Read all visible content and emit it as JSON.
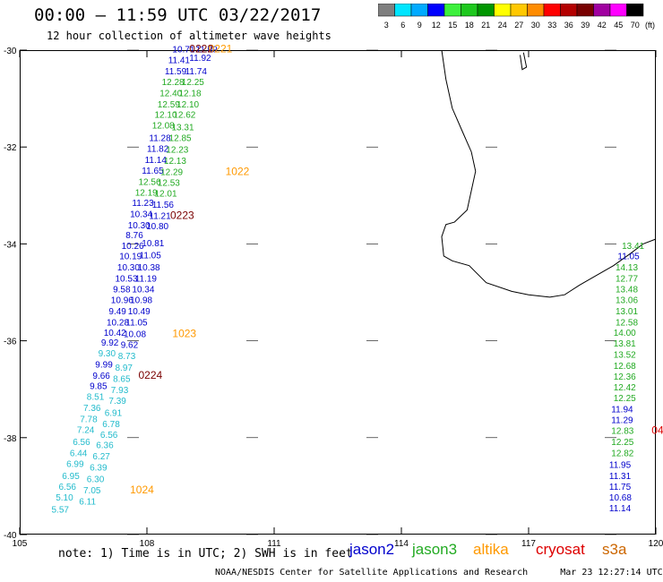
{
  "header": {
    "title": "00:00 – 11:59 UTC 03/22/2017",
    "subtitle": "12 hour collection of altimeter wave heights"
  },
  "color_scale": {
    "unit_label": "(ft)",
    "bins": [
      {
        "label": "3",
        "color": "#7f7f7f"
      },
      {
        "label": "6",
        "color": "#00e5ff"
      },
      {
        "label": "9",
        "color": "#00aaff"
      },
      {
        "label": "12",
        "color": "#0000ff"
      },
      {
        "label": "15",
        "color": "#3cf03c"
      },
      {
        "label": "18",
        "color": "#1ec81e"
      },
      {
        "label": "21",
        "color": "#009600"
      },
      {
        "label": "24",
        "color": "#ffff00"
      },
      {
        "label": "27",
        "color": "#ffc800"
      },
      {
        "label": "30",
        "color": "#ff8c00"
      },
      {
        "label": "33",
        "color": "#ff0000"
      },
      {
        "label": "36",
        "color": "#b40000"
      },
      {
        "label": "39",
        "color": "#780000"
      },
      {
        "label": "42",
        "color": "#a000a0"
      },
      {
        "label": "45",
        "color": "#ff00ff"
      },
      {
        "label": "70",
        "color": "#000000"
      }
    ]
  },
  "axes": {
    "lon_labels": [
      "105",
      "108",
      "111",
      "114",
      "117",
      "120"
    ],
    "lat_labels": [
      "-30",
      "-32",
      "-34",
      "-36",
      "-38",
      "-40"
    ],
    "lon_range": [
      105,
      120
    ],
    "lat_range": [
      -40,
      -30
    ]
  },
  "colors": {
    "jason2": "#0000cc",
    "jason3": "#22aa22",
    "altika": "#ff9900",
    "cryosat": "#dd0000",
    "s3a": "#cc6600",
    "time_label_dark": "#7a0000",
    "light_green": "#66dd66",
    "cyan": "#22bbcc",
    "coast": "#000000"
  },
  "track_west": [
    {
      "lon": 108.6,
      "lat": -30.05,
      "v": "10.71",
      "c": "jason2"
    },
    {
      "lon": 109.15,
      "lat": -30.05,
      "v": "11.09",
      "c": "jason2"
    },
    {
      "lon": 108.5,
      "lat": -30.27,
      "v": "11.41",
      "c": "jason2"
    },
    {
      "lon": 109.0,
      "lat": -30.22,
      "v": "11.92",
      "c": "jason2"
    },
    {
      "lon": 108.42,
      "lat": -30.5,
      "v": "11.59",
      "c": "jason2"
    },
    {
      "lon": 108.9,
      "lat": -30.5,
      "v": "11.74",
      "c": "jason2"
    },
    {
      "lon": 108.35,
      "lat": -30.72,
      "v": "12.28",
      "c": "jason3"
    },
    {
      "lon": 108.82,
      "lat": -30.72,
      "v": "12.25",
      "c": "jason3"
    },
    {
      "lon": 108.3,
      "lat": -30.95,
      "v": "12.40",
      "c": "jason3"
    },
    {
      "lon": 108.75,
      "lat": -30.95,
      "v": "12.18",
      "c": "jason3"
    },
    {
      "lon": 108.25,
      "lat": -31.18,
      "v": "12.59",
      "c": "jason3"
    },
    {
      "lon": 108.7,
      "lat": -31.18,
      "v": "12.10",
      "c": "jason3"
    },
    {
      "lon": 108.18,
      "lat": -31.4,
      "v": "12.10",
      "c": "jason3"
    },
    {
      "lon": 108.62,
      "lat": -31.4,
      "v": "12.62",
      "c": "jason3"
    },
    {
      "lon": 108.12,
      "lat": -31.62,
      "v": "12.08",
      "c": "jason3"
    },
    {
      "lon": 108.58,
      "lat": -31.65,
      "v": "13.31",
      "c": "jason3"
    },
    {
      "lon": 108.05,
      "lat": -31.88,
      "v": "11.28",
      "c": "jason2"
    },
    {
      "lon": 108.52,
      "lat": -31.88,
      "v": "12.85",
      "c": "jason3"
    },
    {
      "lon": 108.0,
      "lat": -32.1,
      "v": "11.82",
      "c": "jason2"
    },
    {
      "lon": 108.45,
      "lat": -32.12,
      "v": "12.23",
      "c": "jason3"
    },
    {
      "lon": 107.95,
      "lat": -32.33,
      "v": "11.14",
      "c": "jason2"
    },
    {
      "lon": 108.4,
      "lat": -32.35,
      "v": "12.13",
      "c": "jason3"
    },
    {
      "lon": 107.88,
      "lat": -32.55,
      "v": "11.65",
      "c": "jason2"
    },
    {
      "lon": 108.32,
      "lat": -32.58,
      "v": "12.29",
      "c": "jason3"
    },
    {
      "lon": 107.8,
      "lat": -32.78,
      "v": "12.56",
      "c": "jason3"
    },
    {
      "lon": 108.25,
      "lat": -32.8,
      "v": "12.53",
      "c": "jason3"
    },
    {
      "lon": 107.72,
      "lat": -33.0,
      "v": "12.19",
      "c": "jason3"
    },
    {
      "lon": 108.18,
      "lat": -33.02,
      "v": "12.01",
      "c": "jason3"
    },
    {
      "lon": 107.65,
      "lat": -33.22,
      "v": "11.23",
      "c": "jason2"
    },
    {
      "lon": 108.12,
      "lat": -33.25,
      "v": "11.56",
      "c": "jason2"
    },
    {
      "lon": 107.6,
      "lat": -33.45,
      "v": "10.34",
      "c": "jason2"
    },
    {
      "lon": 108.05,
      "lat": -33.48,
      "v": "11.21",
      "c": "jason2"
    },
    {
      "lon": 107.55,
      "lat": -33.68,
      "v": "10.30",
      "c": "jason2"
    },
    {
      "lon": 107.98,
      "lat": -33.7,
      "v": "10.80",
      "c": "jason2"
    },
    {
      "lon": 107.5,
      "lat": -33.88,
      "v": "8.76",
      "c": "jason2"
    },
    {
      "lon": 107.4,
      "lat": -34.1,
      "v": "10.26",
      "c": "jason2"
    },
    {
      "lon": 107.88,
      "lat": -34.05,
      "v": "10.81",
      "c": "jason2"
    },
    {
      "lon": 107.35,
      "lat": -34.32,
      "v": "10.19",
      "c": "jason2"
    },
    {
      "lon": 107.82,
      "lat": -34.3,
      "v": "11.05",
      "c": "jason2"
    },
    {
      "lon": 107.3,
      "lat": -34.55,
      "v": "10.30",
      "c": "jason2"
    },
    {
      "lon": 107.78,
      "lat": -34.55,
      "v": "10.38",
      "c": "jason2"
    },
    {
      "lon": 107.25,
      "lat": -34.78,
      "v": "10.53",
      "c": "jason2"
    },
    {
      "lon": 107.72,
      "lat": -34.78,
      "v": "11.19",
      "c": "jason2"
    },
    {
      "lon": 107.2,
      "lat": -35.0,
      "v": "9.58",
      "c": "jason2"
    },
    {
      "lon": 107.65,
      "lat": -35.0,
      "v": "10.34",
      "c": "jason2"
    },
    {
      "lon": 107.15,
      "lat": -35.22,
      "v": "10.96",
      "c": "jason2"
    },
    {
      "lon": 107.6,
      "lat": -35.22,
      "v": "10.98",
      "c": "jason2"
    },
    {
      "lon": 107.1,
      "lat": -35.45,
      "v": "9.49",
      "c": "jason2"
    },
    {
      "lon": 107.55,
      "lat": -35.45,
      "v": "10.49",
      "c": "jason2"
    },
    {
      "lon": 107.05,
      "lat": -35.68,
      "v": "10.28",
      "c": "jason2"
    },
    {
      "lon": 107.5,
      "lat": -35.68,
      "v": "11.05",
      "c": "jason2"
    },
    {
      "lon": 106.98,
      "lat": -35.9,
      "v": "10.42",
      "c": "jason2"
    },
    {
      "lon": 107.45,
      "lat": -35.92,
      "v": "10.08",
      "c": "jason2"
    },
    {
      "lon": 106.92,
      "lat": -36.1,
      "v": "9.92",
      "c": "jason2"
    },
    {
      "lon": 107.38,
      "lat": -36.15,
      "v": "9.62",
      "c": "jason2"
    },
    {
      "lon": 106.85,
      "lat": -36.32,
      "v": "9.30",
      "c": "cyan"
    },
    {
      "lon": 107.32,
      "lat": -36.38,
      "v": "8.73",
      "c": "cyan"
    },
    {
      "lon": 106.78,
      "lat": -36.55,
      "v": "9.99",
      "c": "jason2"
    },
    {
      "lon": 107.25,
      "lat": -36.62,
      "v": "8.97",
      "c": "cyan"
    },
    {
      "lon": 106.72,
      "lat": -36.78,
      "v": "9.66",
      "c": "jason2"
    },
    {
      "lon": 107.2,
      "lat": -36.85,
      "v": "8.65",
      "c": "cyan"
    },
    {
      "lon": 106.65,
      "lat": -37.0,
      "v": "9.85",
      "c": "jason2"
    },
    {
      "lon": 107.15,
      "lat": -37.08,
      "v": "7.93",
      "c": "cyan"
    },
    {
      "lon": 106.58,
      "lat": -37.22,
      "v": "8.51",
      "c": "cyan"
    },
    {
      "lon": 107.1,
      "lat": -37.3,
      "v": "7.39",
      "c": "cyan"
    },
    {
      "lon": 106.5,
      "lat": -37.45,
      "v": "7.36",
      "c": "cyan"
    },
    {
      "lon": 107.0,
      "lat": -37.55,
      "v": "6.91",
      "c": "cyan"
    },
    {
      "lon": 106.42,
      "lat": -37.68,
      "v": "7.78",
      "c": "cyan"
    },
    {
      "lon": 106.95,
      "lat": -37.78,
      "v": "6.78",
      "c": "cyan"
    },
    {
      "lon": 106.35,
      "lat": -37.9,
      "v": "7.24",
      "c": "cyan"
    },
    {
      "lon": 106.9,
      "lat": -38.0,
      "v": "6.56",
      "c": "cyan"
    },
    {
      "lon": 106.25,
      "lat": -38.15,
      "v": "6.56",
      "c": "cyan"
    },
    {
      "lon": 106.8,
      "lat": -38.22,
      "v": "6.36",
      "c": "cyan"
    },
    {
      "lon": 106.18,
      "lat": -38.38,
      "v": "6.44",
      "c": "cyan"
    },
    {
      "lon": 106.72,
      "lat": -38.45,
      "v": "6.27",
      "c": "cyan"
    },
    {
      "lon": 106.1,
      "lat": -38.6,
      "v": "6.99",
      "c": "cyan"
    },
    {
      "lon": 106.65,
      "lat": -38.68,
      "v": "6.39",
      "c": "cyan"
    },
    {
      "lon": 106.0,
      "lat": -38.85,
      "v": "6.95",
      "c": "cyan"
    },
    {
      "lon": 106.58,
      "lat": -38.92,
      "v": "6.30",
      "c": "cyan"
    },
    {
      "lon": 105.92,
      "lat": -39.08,
      "v": "6.56",
      "c": "cyan"
    },
    {
      "lon": 106.5,
      "lat": -39.15,
      "v": "7.05",
      "c": "cyan"
    },
    {
      "lon": 105.85,
      "lat": -39.3,
      "v": "5.10",
      "c": "cyan"
    },
    {
      "lon": 105.75,
      "lat": -39.55,
      "v": "5.57",
      "c": "cyan"
    },
    {
      "lon": 106.4,
      "lat": -39.38,
      "v": "6.11",
      "c": "cyan"
    }
  ],
  "track_east": [
    {
      "lon": 119.2,
      "lat": -34.1,
      "v": "13.41",
      "c": "jason3"
    },
    {
      "lon": 119.1,
      "lat": -34.32,
      "v": "11.05",
      "c": "jason2"
    },
    {
      "lon": 119.05,
      "lat": -34.55,
      "v": "14.13",
      "c": "jason3"
    },
    {
      "lon": 119.05,
      "lat": -34.78,
      "v": "12.77",
      "c": "jason3"
    },
    {
      "lon": 119.05,
      "lat": -35.0,
      "v": "13.48",
      "c": "jason3"
    },
    {
      "lon": 119.05,
      "lat": -35.22,
      "v": "13.06",
      "c": "jason3"
    },
    {
      "lon": 119.05,
      "lat": -35.45,
      "v": "13.01",
      "c": "jason3"
    },
    {
      "lon": 119.05,
      "lat": -35.68,
      "v": "12.58",
      "c": "jason3"
    },
    {
      "lon": 119.0,
      "lat": -35.9,
      "v": "14.00",
      "c": "jason3"
    },
    {
      "lon": 119.0,
      "lat": -36.12,
      "v": "13.81",
      "c": "jason3"
    },
    {
      "lon": 119.0,
      "lat": -36.35,
      "v": "13.52",
      "c": "jason3"
    },
    {
      "lon": 119.0,
      "lat": -36.58,
      "v": "12.68",
      "c": "jason3"
    },
    {
      "lon": 119.0,
      "lat": -36.8,
      "v": "12.36",
      "c": "jason3"
    },
    {
      "lon": 119.0,
      "lat": -37.02,
      "v": "12.42",
      "c": "jason3"
    },
    {
      "lon": 119.0,
      "lat": -37.25,
      "v": "12.25",
      "c": "jason3"
    },
    {
      "lon": 118.95,
      "lat": -37.48,
      "v": "11.94",
      "c": "jason2"
    },
    {
      "lon": 118.95,
      "lat": -37.7,
      "v": "11.29",
      "c": "jason2"
    },
    {
      "lon": 118.95,
      "lat": -37.92,
      "v": "12.83",
      "c": "jason3"
    },
    {
      "lon": 118.95,
      "lat": -38.15,
      "v": "12.25",
      "c": "jason3"
    },
    {
      "lon": 118.95,
      "lat": -38.38,
      "v": "12.82",
      "c": "jason3"
    },
    {
      "lon": 118.9,
      "lat": -38.62,
      "v": "11.95",
      "c": "jason2"
    },
    {
      "lon": 118.9,
      "lat": -38.85,
      "v": "11.31",
      "c": "jason2"
    },
    {
      "lon": 118.9,
      "lat": -39.08,
      "v": "11.75",
      "c": "jason2"
    },
    {
      "lon": 118.9,
      "lat": -39.3,
      "v": "10.68",
      "c": "jason2"
    },
    {
      "lon": 118.9,
      "lat": -39.52,
      "v": "11.14",
      "c": "jason2"
    }
  ],
  "time_labels": [
    {
      "lon": 109.45,
      "lat": -30.05,
      "v": "0221",
      "c": "altika"
    },
    {
      "lon": 109.0,
      "lat": -30.05,
      "v": "0222",
      "c": "time_label_dark"
    },
    {
      "lon": 109.85,
      "lat": -32.58,
      "v": "1022",
      "c": "altika"
    },
    {
      "lon": 108.55,
      "lat": -33.48,
      "v": "0223",
      "c": "time_label_dark"
    },
    {
      "lon": 108.6,
      "lat": -35.92,
      "v": "1023",
      "c": "altika"
    },
    {
      "lon": 107.8,
      "lat": -36.78,
      "v": "0224",
      "c": "time_label_dark"
    },
    {
      "lon": 107.6,
      "lat": -39.15,
      "v": "1024",
      "c": "altika"
    },
    {
      "lon": 119.9,
      "lat": -37.92,
      "v": "04",
      "c": "cryosat"
    }
  ],
  "footer": {
    "note": "note:  1) Time is in UTC;  2) SWH is in feet",
    "satellites": [
      {
        "name": "jason2",
        "color": "#0000cc"
      },
      {
        "name": "jason3",
        "color": "#22aa22"
      },
      {
        "name": "altika",
        "color": "#ff9900"
      },
      {
        "name": "cryosat",
        "color": "#dd0000"
      },
      {
        "name": "s3a",
        "color": "#cc6600"
      }
    ],
    "credit": "NOAA/NESDIS Center for Satellite Applications and Research",
    "timestamp": "Mar 23 12:27:14 UTC 2017"
  }
}
